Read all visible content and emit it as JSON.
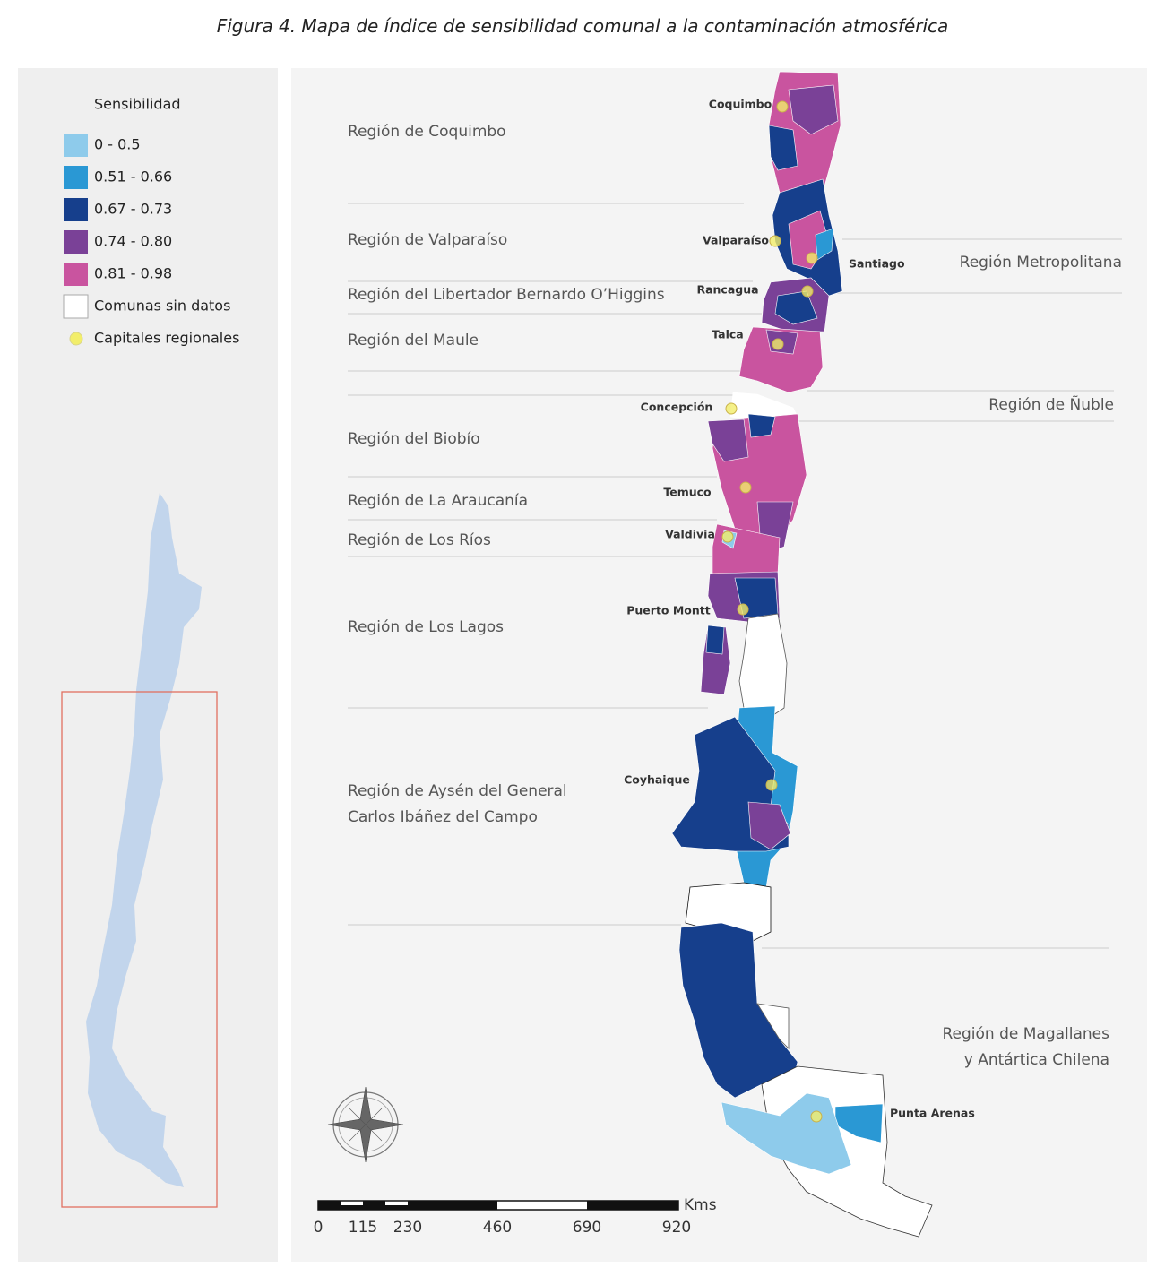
{
  "title": {
    "figure": "Figura 4.",
    "text": "Mapa de índice de sensibilidad comunal a la contaminación atmosférica"
  },
  "legend": {
    "title": "Sensibilidad",
    "items": [
      {
        "label": "0 - 0.5",
        "color": "#8ecbeb"
      },
      {
        "label": "0.51 - 0.66",
        "color": "#2a98d4"
      },
      {
        "label": "0.67 - 0.73",
        "color": "#163f8c"
      },
      {
        "label": "0.74 - 0.80",
        "color": "#7a4197"
      },
      {
        "label": "0.81 - 0.98",
        "color": "#c9549f"
      },
      {
        "label": "Comunas sin datos",
        "color": "#ffffff"
      },
      {
        "label": "Capitales regionales",
        "color": "#f2ee6a"
      }
    ]
  },
  "regions": [
    {
      "lines": [
        "Región de Coquimbo"
      ]
    },
    {
      "lines": [
        "Región de Valparaíso"
      ]
    },
    {
      "lines": [
        "Región Metropolitana"
      ]
    },
    {
      "lines": [
        "Región del Libertador Bernardo O’Higgins"
      ]
    },
    {
      "lines": [
        "Región del Maule"
      ]
    },
    {
      "lines": [
        "Región de Ñuble"
      ]
    },
    {
      "lines": [
        "Región del Biobío"
      ]
    },
    {
      "lines": [
        "Región de La Araucanía"
      ]
    },
    {
      "lines": [
        "Región de Los Ríos"
      ]
    },
    {
      "lines": [
        "Región de Los Lagos"
      ]
    },
    {
      "lines": [
        "Región de Aysén del General",
        "Carlos Ibáñez del Campo"
      ]
    },
    {
      "lines": [
        "Región de Magallanes",
        "y Antártica Chilena"
      ]
    }
  ],
  "cities": [
    "Coquimbo",
    "Valparaíso",
    "Santiago",
    "Rancagua",
    "Talca",
    "Concepción",
    "Temuco",
    "Valdivia",
    "Puerto Montt",
    "Coyhaique",
    "Punta Arenas"
  ],
  "scale": {
    "labels": [
      "0",
      "115",
      "230",
      "460",
      "690",
      "920"
    ],
    "unit": "Kms"
  }
}
